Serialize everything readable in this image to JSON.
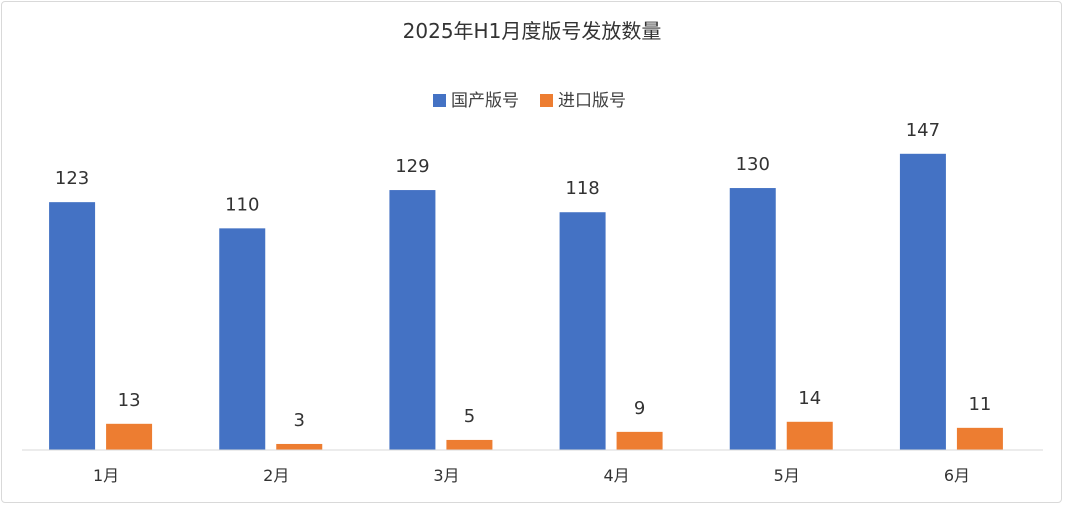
{
  "chart_data": {
    "type": "bar",
    "title": "2025年H1月度版号发放数量",
    "categories": [
      "1月",
      "2月",
      "3月",
      "4月",
      "5月",
      "6月"
    ],
    "series": [
      {
        "name": "国产版号",
        "values": [
          123,
          110,
          129,
          118,
          130,
          147
        ],
        "color": "#4472C4"
      },
      {
        "name": "进口版号",
        "values": [
          13,
          3,
          5,
          9,
          14,
          11
        ],
        "color": "#ED7D31"
      }
    ],
    "xlabel": "",
    "ylabel": "",
    "ylim": [
      0,
      150
    ],
    "grid": false,
    "legend_position": "top-center",
    "data_labels": true
  }
}
